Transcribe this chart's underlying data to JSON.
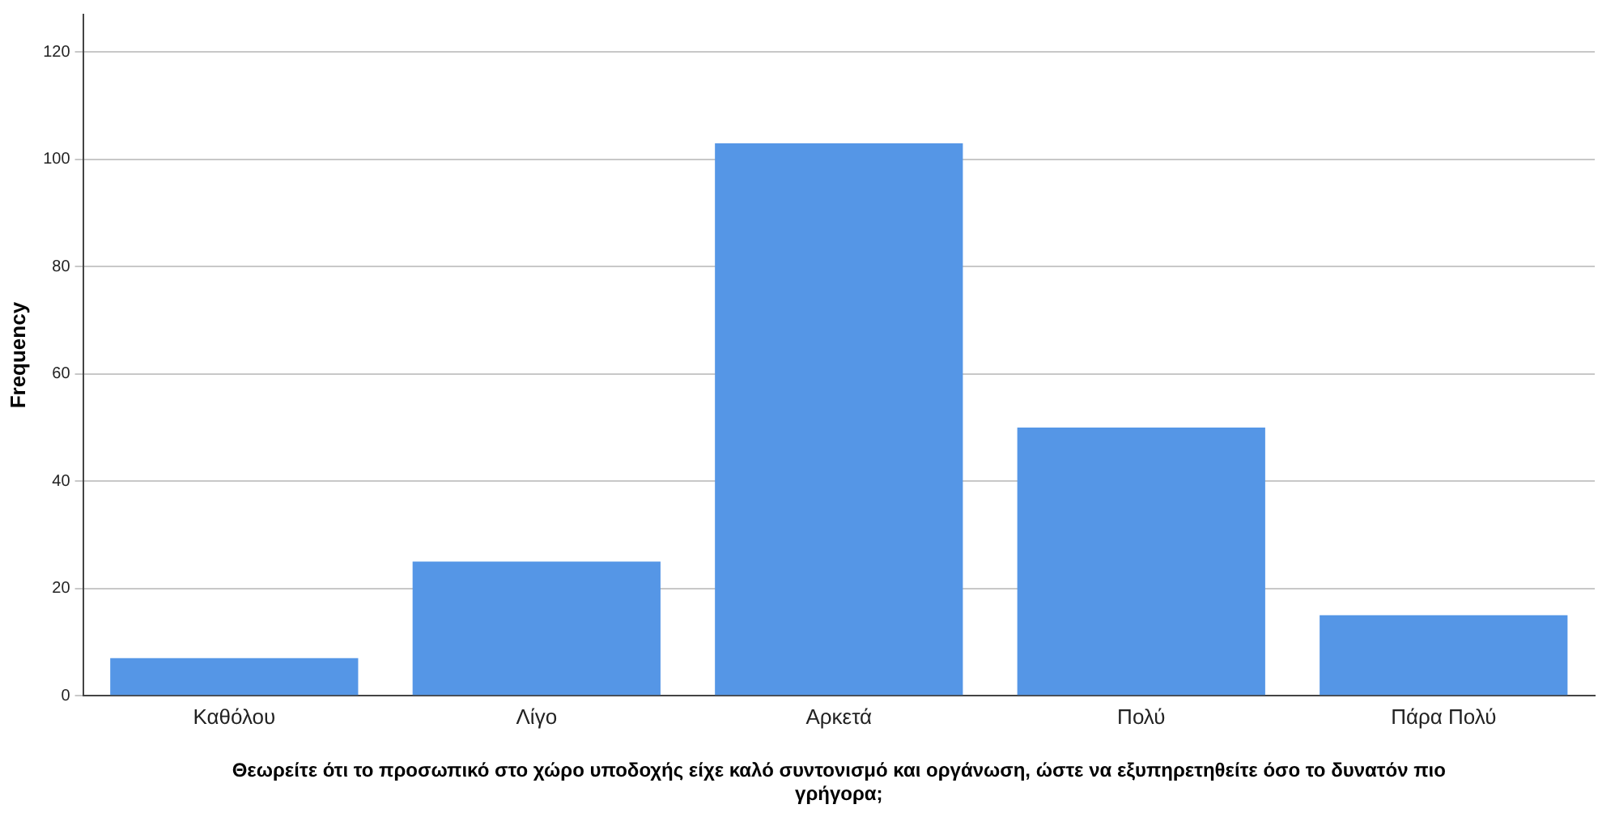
{
  "chart_data": {
    "type": "bar",
    "xlabel": "Θεωρείτε ότι το προσωπικό στο χώρο υποδοχής είχε καλό συντονισμό και οργάνωση, ώστε να εξυπηρετηθείτε όσο το δυνατόν πιο γρήγορα;",
    "ylabel": "Frequency",
    "categories": [
      "Καθόλου",
      "Λίγο",
      "Αρκετά",
      "Πολύ",
      "Πάρα Πολύ"
    ],
    "values": [
      7,
      25,
      103,
      50,
      15
    ],
    "color": "#5596e6",
    "ylim": [
      0,
      127
    ],
    "yticks": [
      0,
      20,
      40,
      60,
      80,
      100,
      120
    ],
    "grid": "y"
  }
}
